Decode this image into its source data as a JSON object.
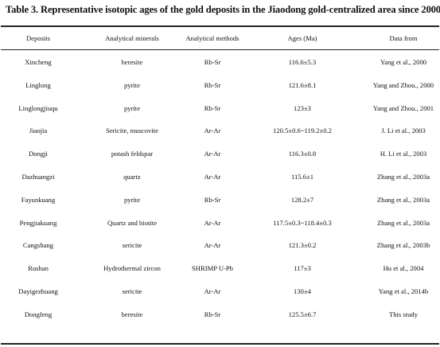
{
  "table": {
    "caption": "Table 3. Representative isotopic ages of the gold deposits in the Jiaodong gold-centralized area since 2000",
    "headers": [
      "Deposits",
      "Analytical minerals",
      "Analytical methods",
      "Ages (Ma)",
      "Data from"
    ],
    "rows": [
      [
        "Xincheng",
        "beresite",
        "Rb-Sr",
        "116.6±5.3",
        "Yang et al., 2000"
      ],
      [
        "Linglong",
        "pyrite",
        "Rb-Sr",
        "121.6±8.1",
        "Yang and Zhou., 2000"
      ],
      [
        "Linglongjiuqu",
        "pyrite",
        "Rb-Sr",
        "123±3",
        "Yang and Zhou., 2001"
      ],
      [
        "Jiaojia",
        "Sericite, muscovite",
        "Ar-Ar",
        "120.5±0.6~119.2±0.2",
        "J. Li et al., 2003"
      ],
      [
        "Dongji",
        "potash feldspar",
        "Ar-Ar",
        "116.3±0.8",
        "H. Li et al., 2003"
      ],
      [
        "Dazhuangzi",
        "quartz",
        "Ar-Ar",
        "115.6±1",
        "Zhang et al., 2003a"
      ],
      [
        "Fayunkuang",
        "pyrite",
        "Rb-Sr",
        "128.2±7",
        "Zhang et al., 2003a"
      ],
      [
        "Pengjiakuang",
        "Quartz and biotite",
        "Ar-Ar",
        "117.5±0.3~118.4±0.3",
        "Zhang et al., 2003a"
      ],
      [
        "Cangshang",
        "sericite",
        "Ar-Ar",
        "121.3±0.2",
        "Zhang et al., 2003b"
      ],
      [
        "Rushan",
        "Hydrothermal zircon",
        "SHRIMP U-Pb",
        "117±3",
        "Hu et al., 2004"
      ],
      [
        "Dayigezhuang",
        "sericite",
        "Ar-Ar",
        "130±4",
        "Yang et al., 2014b"
      ],
      [
        "Dongfeng",
        "beresite",
        "Rb-Sr",
        "125.5±6.7",
        "This study"
      ]
    ]
  }
}
